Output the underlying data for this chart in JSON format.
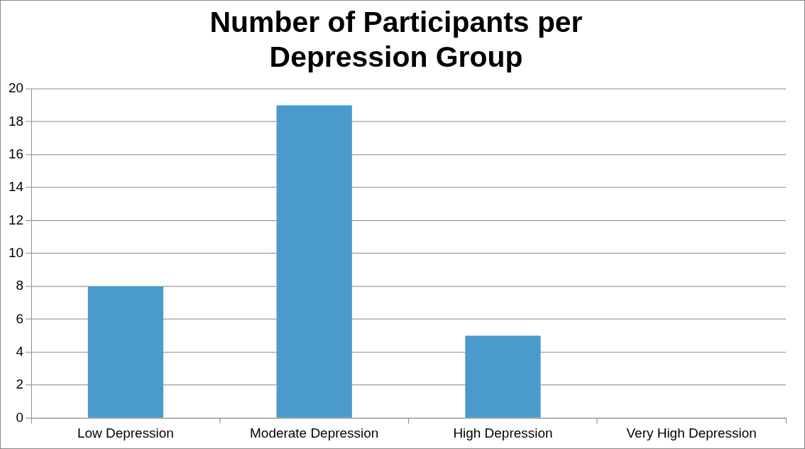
{
  "chart_data": {
    "type": "bar",
    "title": "Number of Participants per Depression Group",
    "categories": [
      "Low Depression",
      "Moderate Depression",
      "High Depression",
      "Very High Depression"
    ],
    "values": [
      8,
      19,
      5,
      0
    ],
    "color": "#4a9bcb",
    "ylim": [
      0,
      20
    ],
    "yticks": [
      0,
      2,
      4,
      6,
      8,
      10,
      12,
      14,
      16,
      18,
      20
    ],
    "grid": "y",
    "legend": false
  }
}
